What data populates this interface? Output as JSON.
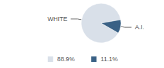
{
  "chart_data": {
    "type": "pie",
    "categories": [
      "WHITE",
      "A.I."
    ],
    "values": [
      88.9,
      11.1
    ],
    "value_labels": [
      "88.9%",
      "11.1%"
    ],
    "colors": [
      "#d9e0e9",
      "#3a6185"
    ],
    "legend": "bottom"
  }
}
